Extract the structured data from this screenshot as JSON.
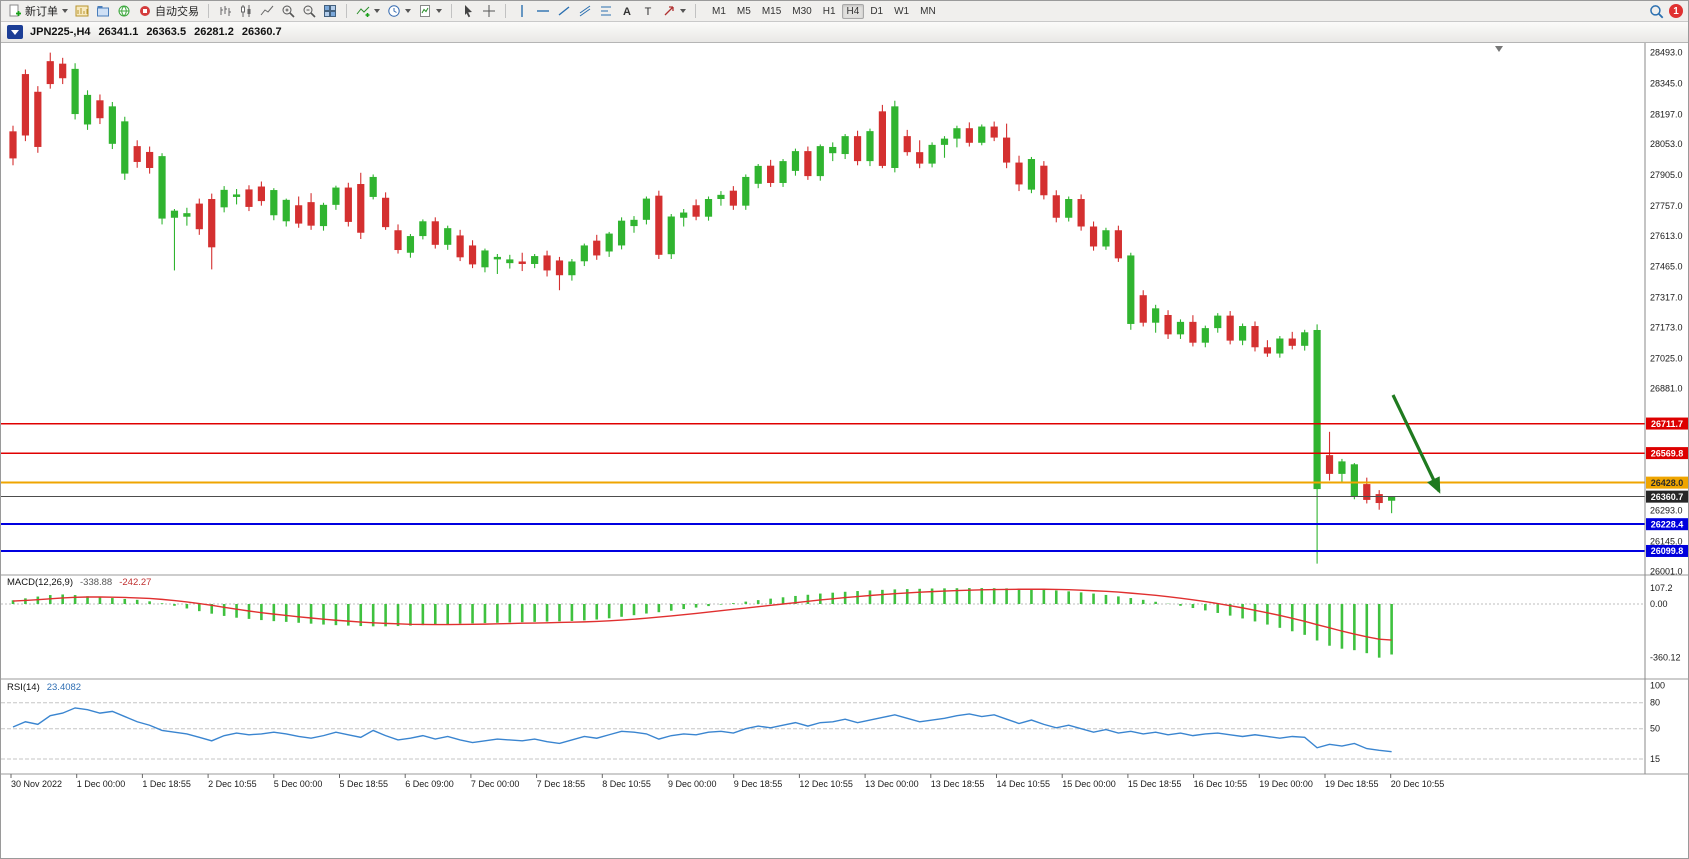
{
  "toolbar": {
    "new_order_label": "新订单",
    "autotrading_label": "自动交易",
    "text_tool_glyph": "A",
    "label_tool_glyph": "T",
    "timeframes": [
      "M1",
      "M5",
      "M15",
      "M30",
      "H1",
      "H4",
      "D1",
      "W1",
      "MN"
    ],
    "active_timeframe": "H4",
    "notification_count": "1",
    "icons": [
      "new-order-icon",
      "charts-icon",
      "profiles-icon",
      "news-icon",
      "autotrading-icon",
      "bar-chart-icon",
      "candlestick-icon",
      "line-chart-icon",
      "zoom-in-icon",
      "zoom-out-icon",
      "tile-windows-icon",
      "add-indicator-icon",
      "period-icon",
      "templates-icon",
      "cursor-icon",
      "crosshair-icon",
      "vertical-line-icon",
      "horizontal-line-icon",
      "trendline-icon",
      "channel-icon",
      "fibonacci-icon",
      "text-icon",
      "label-icon",
      "arrow-tool-icon",
      "search-icon",
      "notification-icon",
      "dropdown-caret-icon"
    ]
  },
  "chart_header": {
    "symbol_period": "JPN225-,H4",
    "open": "26341.1",
    "high": "26363.5",
    "low": "26281.2",
    "close": "26360.7"
  },
  "price_axis": {
    "labels": [
      {
        "text": "28493.0",
        "price": 28493
      },
      {
        "text": "28345.0",
        "price": 28345
      },
      {
        "text": "28197.0",
        "price": 28197
      },
      {
        "text": "28053.0",
        "price": 28053
      },
      {
        "text": "27905.0",
        "price": 27905
      },
      {
        "text": "27757.0",
        "price": 27757
      },
      {
        "text": "27613.0",
        "price": 27613
      },
      {
        "text": "27465.0",
        "price": 27465
      },
      {
        "text": "27317.0",
        "price": 27317
      },
      {
        "text": "27173.0",
        "price": 27173
      },
      {
        "text": "27025.0",
        "price": 27025
      },
      {
        "text": "26881.0",
        "price": 26881
      },
      {
        "text": "26293.0",
        "price": 26293
      },
      {
        "text": "26145.0",
        "price": 26145
      },
      {
        "text": "26001.0",
        "price": 26001
      }
    ]
  },
  "time_axis": {
    "labels": [
      "30 Nov 2022",
      "1 Dec 00:00",
      "1 Dec 18:55",
      "2 Dec 10:55",
      "5 Dec 00:00",
      "5 Dec 18:55",
      "6 Dec 09:00",
      "7 Dec 00:00",
      "7 Dec 18:55",
      "8 Dec 10:55",
      "9 Dec 00:00",
      "9 Dec 18:55",
      "12 Dec 10:55",
      "13 Dec 00:00",
      "13 Dec 18:55",
      "14 Dec 10:55",
      "15 Dec 00:00",
      "15 Dec 18:55",
      "16 Dec 10:55",
      "19 Dec 00:00",
      "19 Dec 18:55",
      "20 Dec 10:55"
    ]
  },
  "hlines": [
    {
      "price": 26711.7,
      "label": "26711.7",
      "color": "#e00000",
      "badge_bg": "#dd0000",
      "badge_fg": "#ffffff",
      "width": 1.4
    },
    {
      "price": 26569.8,
      "label": "26569.8",
      "color": "#e00000",
      "badge_bg": "#dd0000",
      "badge_fg": "#ffffff",
      "width": 1.4
    },
    {
      "price": 26428.0,
      "label": "26428.0",
      "color": "#efa500",
      "badge_bg": "#efa500",
      "badge_fg": "#2b2b2b",
      "width": 2
    },
    {
      "price": 26360.7,
      "label": "26360.7",
      "color": "#4d4d4d",
      "badge_bg": "#262626",
      "badge_fg": "#ffffff",
      "width": 1
    },
    {
      "price": 26228.4,
      "label": "26228.4",
      "color": "#0000e0",
      "badge_bg": "#0000dd",
      "badge_fg": "#ffffff",
      "width": 2
    },
    {
      "price": 26099.8,
      "label": "26099.8",
      "color": "#0000e0",
      "badge_bg": "#0000dd",
      "badge_fg": "#ffffff",
      "width": 2
    }
  ],
  "arrow_annotation": {
    "color": "#1f7a1f"
  },
  "chart_data": [
    {
      "type": "candlestick",
      "symbol": "JPN225-",
      "period": "H4",
      "up_color": "#30b430",
      "down_color": "#d43030",
      "y_range": [
        25994,
        28520
      ],
      "candles": [
        [
          28115,
          28142,
          27952,
          27985
        ],
        [
          28390,
          28412,
          28068,
          28095
        ],
        [
          28305,
          28332,
          28012,
          28040
        ],
        [
          28452,
          28493,
          28320,
          28342
        ],
        [
          28440,
          28468,
          28342,
          28370
        ],
        [
          28198,
          28442,
          28172,
          28415
        ],
        [
          28148,
          28312,
          28122,
          28290
        ],
        [
          28264,
          28292,
          28150,
          28178
        ],
        [
          28055,
          28256,
          28030,
          28235
        ],
        [
          27912,
          28185,
          27882,
          28163
        ],
        [
          28044,
          28072,
          27940,
          27968
        ],
        [
          28016,
          28042,
          27912,
          27939
        ],
        [
          27696,
          28010,
          27668,
          27996
        ],
        [
          27700,
          27742,
          27447,
          27734
        ],
        [
          27705,
          27748,
          27662,
          27722
        ],
        [
          27768,
          27792,
          27618,
          27645
        ],
        [
          27790,
          27816,
          27452,
          27558
        ],
        [
          27750,
          27852,
          27726,
          27834
        ],
        [
          27800,
          27838,
          27764,
          27812
        ],
        [
          27836,
          27856,
          27732,
          27752
        ],
        [
          27850,
          27874,
          27758,
          27780
        ],
        [
          27712,
          27842,
          27688,
          27833
        ],
        [
          27683,
          27792,
          27658,
          27786
        ],
        [
          27760,
          27802,
          27652,
          27672
        ],
        [
          27775,
          27818,
          27642,
          27662
        ],
        [
          27660,
          27772,
          27638,
          27762
        ],
        [
          27762,
          27854,
          27738,
          27845
        ],
        [
          27845,
          27868,
          27658,
          27680
        ],
        [
          27862,
          27916,
          27598,
          27628
        ],
        [
          27800,
          27908,
          27788,
          27896
        ],
        [
          27796,
          27822,
          27642,
          27655
        ],
        [
          27640,
          27668,
          27528,
          27545
        ],
        [
          27532,
          27622,
          27508,
          27612
        ],
        [
          27612,
          27692,
          27596,
          27683
        ],
        [
          27683,
          27702,
          27552,
          27570
        ],
        [
          27570,
          27662,
          27546,
          27650
        ],
        [
          27615,
          27642,
          27492,
          27510
        ],
        [
          27567,
          27592,
          27458,
          27476
        ],
        [
          27462,
          27552,
          27438,
          27543
        ],
        [
          27500,
          27526,
          27430,
          27512
        ],
        [
          27482,
          27522,
          27456,
          27500
        ],
        [
          27490,
          27532,
          27444,
          27478
        ],
        [
          27478,
          27526,
          27458,
          27516
        ],
        [
          27519,
          27542,
          27418,
          27447
        ],
        [
          27495,
          27512,
          27352,
          27424
        ],
        [
          27424,
          27502,
          27398,
          27490
        ],
        [
          27491,
          27576,
          27468,
          27567
        ],
        [
          27590,
          27618,
          27498,
          27519
        ],
        [
          27538,
          27632,
          27512,
          27624
        ],
        [
          27567,
          27702,
          27548,
          27686
        ],
        [
          27660,
          27708,
          27628,
          27690
        ],
        [
          27690,
          27802,
          27668,
          27792
        ],
        [
          27806,
          27830,
          27502,
          27522
        ],
        [
          27525,
          27718,
          27502,
          27706
        ],
        [
          27700,
          27742,
          27658,
          27725
        ],
        [
          27760,
          27788,
          27688,
          27705
        ],
        [
          27705,
          27802,
          27686,
          27790
        ],
        [
          27790,
          27828,
          27758,
          27810
        ],
        [
          27830,
          27852,
          27738,
          27758
        ],
        [
          27758,
          27908,
          27738,
          27896
        ],
        [
          27863,
          27958,
          27842,
          27949
        ],
        [
          27950,
          27978,
          27848,
          27867
        ],
        [
          27867,
          27982,
          27848,
          27972
        ],
        [
          27925,
          28032,
          27902,
          28020
        ],
        [
          28020,
          28042,
          27882,
          27900
        ],
        [
          27900,
          28052,
          27878,
          28044
        ],
        [
          28010,
          28062,
          27972,
          28040
        ],
        [
          28006,
          28102,
          27982,
          28092
        ],
        [
          28092,
          28118,
          27952,
          27972
        ],
        [
          27972,
          28128,
          27948,
          28116
        ],
        [
          28211,
          28242,
          27938,
          27949
        ],
        [
          27939,
          28262,
          27918,
          28235
        ],
        [
          28092,
          28122,
          27998,
          28015
        ],
        [
          28015,
          28072,
          27938,
          27960
        ],
        [
          27960,
          28062,
          27942,
          28050
        ],
        [
          28050,
          28092,
          27988,
          28080
        ],
        [
          28080,
          28142,
          28038,
          28130
        ],
        [
          28130,
          28158,
          28042,
          28060
        ],
        [
          28060,
          28148,
          28048,
          28138
        ],
        [
          28138,
          28162,
          28068,
          28085
        ],
        [
          28085,
          28152,
          27938,
          27965
        ],
        [
          27965,
          27998,
          27828,
          27860
        ],
        [
          27835,
          27992,
          27818,
          27982
        ],
        [
          27950,
          27972,
          27788,
          27808
        ],
        [
          27808,
          27832,
          27678,
          27700
        ],
        [
          27700,
          27802,
          27682,
          27790
        ],
        [
          27790,
          27812,
          27638,
          27658
        ],
        [
          27658,
          27682,
          27542,
          27562
        ],
        [
          27562,
          27652,
          27546,
          27640
        ],
        [
          27640,
          27662,
          27488,
          27505
        ],
        [
          27190,
          27532,
          27162,
          27519
        ],
        [
          27328,
          27352,
          27178,
          27196
        ],
        [
          27196,
          27282,
          27148,
          27265
        ],
        [
          27233,
          27256,
          27118,
          27140
        ],
        [
          27140,
          27212,
          27118,
          27200
        ],
        [
          27200,
          27232,
          27082,
          27100
        ],
        [
          27100,
          27182,
          27078,
          27170
        ],
        [
          27170,
          27242,
          27148,
          27230
        ],
        [
          27230,
          27252,
          27092,
          27110
        ],
        [
          27110,
          27192,
          27088,
          27180
        ],
        [
          27180,
          27202,
          27058,
          27078
        ],
        [
          27078,
          27112,
          27032,
          27048
        ],
        [
          27048,
          27132,
          27028,
          27120
        ],
        [
          27120,
          27152,
          27068,
          27085
        ],
        [
          27085,
          27162,
          27062,
          27150
        ],
        [
          26397,
          27188,
          26039,
          27161
        ],
        [
          26560,
          26672,
          26438,
          26470
        ],
        [
          26470,
          26542,
          26428,
          26530
        ],
        [
          26363,
          26522,
          26348,
          26516
        ],
        [
          26421,
          26452,
          26328,
          26345
        ],
        [
          26373,
          26392,
          26298,
          26330
        ],
        [
          26341.1,
          26363.5,
          26281.2,
          26360.7
        ]
      ]
    },
    {
      "type": "bar",
      "name": "MACD(12,26,9)",
      "value_main": "-338.88",
      "value_signal": "-242.27",
      "histogram_color": "#3fc13f",
      "signal_color": "#e03030",
      "axis_labels": [
        {
          "text": "107.2",
          "value": 107.2
        },
        {
          "text": "0.00",
          "value": 0
        },
        {
          "text": "-360.12",
          "value": -360.12
        }
      ],
      "histogram": [
        25,
        38,
        50,
        60,
        64,
        60,
        52,
        45,
        40,
        34,
        28,
        18,
        5,
        -12,
        -30,
        -48,
        -65,
        -80,
        -92,
        -100,
        -108,
        -115,
        -120,
        -126,
        -132,
        -138,
        -142,
        -145,
        -148,
        -150,
        -150,
        -148,
        -145,
        -142,
        -138,
        -135,
        -132,
        -130,
        -128,
        -126,
        -124,
        -122,
        -120,
        -118,
        -116,
        -114,
        -110,
        -104,
        -96,
        -86,
        -75,
        -64,
        -55,
        -45,
        -34,
        -24,
        -14,
        -4,
        6,
        16,
        26,
        36,
        45,
        54,
        62,
        70,
        76,
        82,
        87,
        91,
        95,
        98,
        100,
        102,
        104,
        105,
        106,
        107,
        107,
        106,
        105,
        103,
        100,
        96,
        91,
        85,
        78,
        70,
        61,
        51,
        40,
        28,
        15,
        2,
        -12,
        -27,
        -43,
        -60,
        -78,
        -97,
        -117,
        -138,
        -160,
        -183,
        -207,
        -245,
        -280,
        -300,
        -310,
        -330,
        -360.12,
        -338.88
      ],
      "signal": [
        20,
        24,
        29,
        35,
        41,
        45,
        47,
        47,
        46,
        44,
        41,
        37,
        31,
        23,
        14,
        3,
        -9,
        -22,
        -35,
        -47,
        -58,
        -68,
        -77,
        -86,
        -94,
        -102,
        -109,
        -115,
        -121,
        -126,
        -130,
        -133,
        -136,
        -137,
        -138,
        -138,
        -137,
        -136,
        -135,
        -133,
        -131,
        -129,
        -128,
        -126,
        -124,
        -122,
        -120,
        -117,
        -113,
        -108,
        -102,
        -95,
        -88,
        -80,
        -72,
        -63,
        -54,
        -45,
        -36,
        -27,
        -18,
        -9,
        0,
        9,
        18,
        27,
        35,
        43,
        50,
        57,
        63,
        69,
        74,
        79,
        83,
        87,
        90,
        93,
        95,
        97,
        98,
        99,
        99,
        99,
        98,
        96,
        93,
        89,
        85,
        80,
        73,
        66,
        58,
        49,
        39,
        28,
        16,
        3,
        -11,
        -26,
        -42,
        -59,
        -77,
        -96,
        -116,
        -139,
        -160,
        -182,
        -202,
        -220,
        -236,
        -242.27
      ]
    },
    {
      "type": "line",
      "name": "RSI(14)",
      "value": "23.4082",
      "line_color": "#3a85d0",
      "levels": [
        80,
        50,
        15
      ],
      "axis_labels": [
        {
          "text": "100",
          "value": 100
        },
        {
          "text": "80",
          "value": 80
        },
        {
          "text": "50",
          "value": 50
        },
        {
          "text": "15",
          "value": 15
        }
      ],
      "values": [
        52,
        58,
        55,
        65,
        68,
        74,
        72,
        68,
        70,
        64,
        58,
        54,
        48,
        46,
        44,
        40,
        36,
        42,
        45,
        43,
        44,
        46,
        44,
        41,
        39,
        42,
        46,
        43,
        40,
        48,
        42,
        37,
        39,
        42,
        38,
        41,
        37,
        34,
        36,
        38,
        37,
        36,
        38,
        35,
        33,
        37,
        41,
        39,
        43,
        47,
        46,
        44,
        38,
        42,
        44,
        43,
        46,
        47,
        45,
        50,
        53,
        51,
        54,
        57,
        53,
        57,
        58,
        61,
        57,
        60,
        63,
        66,
        62,
        58,
        60,
        62,
        65,
        67,
        64,
        66,
        61,
        56,
        60,
        55,
        51,
        54,
        50,
        46,
        49,
        45,
        47,
        44,
        46,
        43,
        45,
        42,
        44,
        45,
        43,
        41,
        43,
        41,
        39,
        41,
        40,
        28,
        32,
        30,
        33,
        27,
        25,
        23.4082
      ]
    }
  ]
}
